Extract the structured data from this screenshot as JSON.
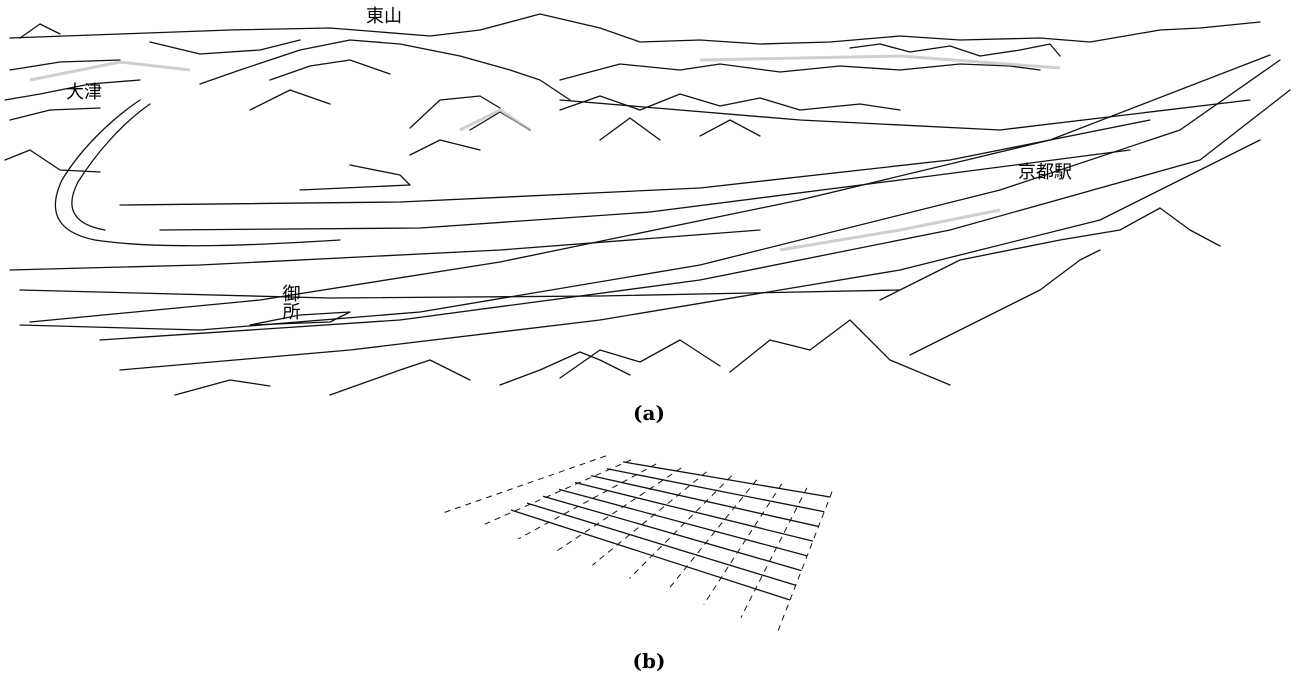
{
  "figure_a": {
    "labels": [
      "東山",
      "大津",
      "京都駅",
      "御所"
    ],
    "caption": "(a)"
  },
  "figure_b": {
    "caption": "(b)"
  }
}
